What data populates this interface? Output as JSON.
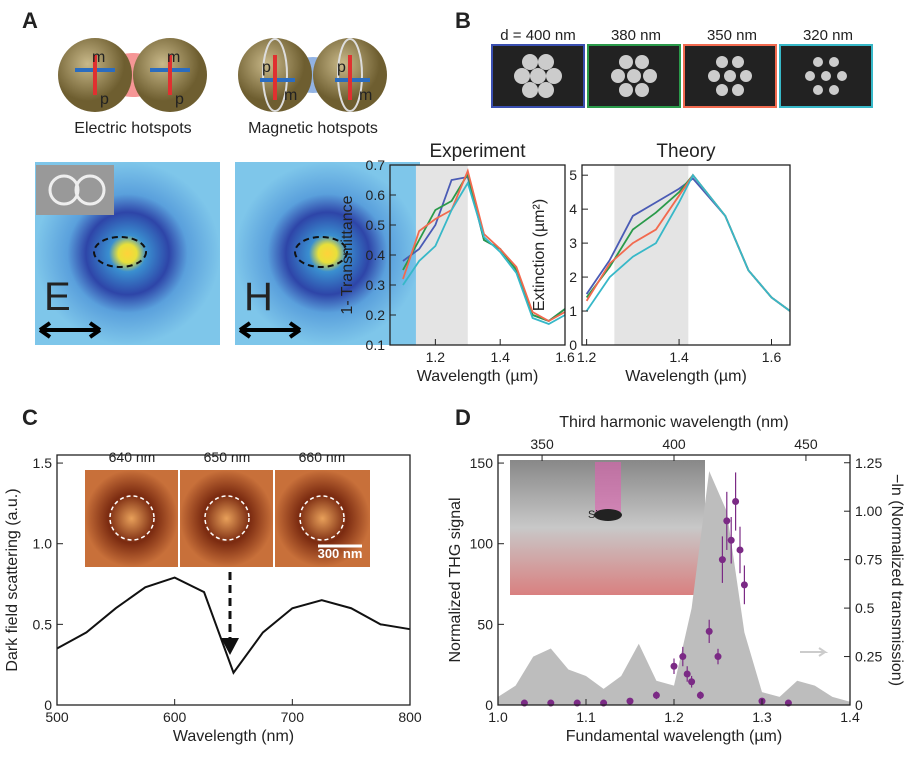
{
  "panels": {
    "labels": [
      "A",
      "B",
      "C",
      "D"
    ],
    "a": {
      "captions": [
        "Electric hotspots",
        "Magnetic hotspots"
      ],
      "fields": [
        "E",
        "H"
      ],
      "letters": [
        "m",
        "p"
      ]
    },
    "b": {
      "sizes": [
        "d = 400 nm",
        "380 nm",
        "350 nm",
        "320 nm"
      ]
    },
    "c": {
      "inset": [
        "640 nm",
        "650 nm",
        "660 nm"
      ],
      "scale": "300 nm"
    },
    "d": {
      "inset": "Si"
    }
  },
  "chart_data": [
    {
      "type": "line",
      "title": "Experiment",
      "xlabel": "Wavelength (µm)",
      "ylabel": "1- Transmittance",
      "x": [
        1.1,
        1.15,
        1.2,
        1.25,
        1.3,
        1.35,
        1.4,
        1.45,
        1.5,
        1.55,
        1.6
      ],
      "series": [
        {
          "color": "#4a5bb5",
          "values": [
            0.38,
            0.42,
            0.5,
            0.65,
            0.66,
            0.45,
            0.42,
            0.35,
            0.2,
            0.18,
            0.22
          ]
        },
        {
          "color": "#2a9a4a",
          "values": [
            0.35,
            0.45,
            0.55,
            0.58,
            0.67,
            0.45,
            0.42,
            0.35,
            0.2,
            0.18,
            0.22
          ]
        },
        {
          "color": "#f26a4f",
          "values": [
            0.32,
            0.48,
            0.52,
            0.55,
            0.68,
            0.47,
            0.42,
            0.36,
            0.21,
            0.18,
            0.21
          ]
        },
        {
          "color": "#37b8c8",
          "values": [
            0.3,
            0.38,
            0.43,
            0.55,
            0.64,
            0.46,
            0.41,
            0.34,
            0.19,
            0.17,
            0.2
          ]
        }
      ],
      "shade": [
        1.14,
        1.3
      ],
      "xlim": [
        1.06,
        1.6
      ],
      "xticks": [
        1.2,
        1.4,
        1.6
      ],
      "ylim": [
        0.1,
        0.7
      ],
      "yticks": [
        0.1,
        0.2,
        0.3,
        0.4,
        0.5,
        0.6,
        0.7
      ]
    },
    {
      "type": "line",
      "title": "Theory",
      "xlabel": "Wavelength (µm)",
      "ylabel": "Extinction (µm²)",
      "x": [
        1.2,
        1.25,
        1.3,
        1.35,
        1.4,
        1.43,
        1.5,
        1.55,
        1.6,
        1.64
      ],
      "series": [
        {
          "color": "#4a5bb5",
          "values": [
            1.5,
            2.5,
            3.8,
            4.2,
            4.6,
            4.9,
            3.8,
            2.2,
            1.4,
            1.0
          ]
        },
        {
          "color": "#2a9a4a",
          "values": [
            1.4,
            2.3,
            3.4,
            3.9,
            4.5,
            5.0,
            3.8,
            2.2,
            1.4,
            1.0
          ]
        },
        {
          "color": "#f26a4f",
          "values": [
            1.3,
            2.4,
            3.0,
            3.4,
            4.4,
            5.0,
            3.8,
            2.2,
            1.4,
            1.0
          ]
        },
        {
          "color": "#37b8c8",
          "values": [
            1.0,
            2.0,
            2.6,
            3.0,
            4.2,
            5.0,
            3.8,
            2.2,
            1.4,
            1.0
          ]
        }
      ],
      "shade": [
        1.26,
        1.42
      ],
      "xlim": [
        1.19,
        1.64
      ],
      "xticks": [
        1.2,
        1.4,
        1.6
      ],
      "ylim": [
        0,
        5.3
      ],
      "yticks": [
        0,
        1,
        2,
        3,
        4,
        5
      ]
    },
    {
      "type": "line",
      "xlabel": "Wavelength (nm)",
      "ylabel": "Dark field scattering (a.u.)",
      "x": [
        500,
        525,
        550,
        575,
        600,
        625,
        650,
        675,
        700,
        725,
        750,
        775,
        800
      ],
      "series": [
        {
          "color": "#111111",
          "values": [
            0.35,
            0.45,
            0.6,
            0.73,
            0.79,
            0.7,
            0.2,
            0.45,
            0.6,
            0.65,
            0.6,
            0.5,
            0.47
          ]
        }
      ],
      "xlim": [
        500,
        800
      ],
      "xticks": [
        500,
        600,
        700,
        800
      ],
      "ylim": [
        0,
        1.55
      ],
      "yticks": [
        0,
        0.5,
        {
          "value": 1,
          "label": "1.0"
        },
        1.5
      ]
    },
    {
      "type": "combo",
      "xlabel": "Fundamental wavelength (µm)",
      "ylabel": "Normalized  THG  signal",
      "y2label": "−ln (Normalized  transmission)",
      "x2label": "Third harmonic wavelength (nm)",
      "series": [
        {
          "type": "area",
          "color": "#bdbdbd",
          "x": [
            1.0,
            1.02,
            1.04,
            1.06,
            1.08,
            1.1,
            1.12,
            1.14,
            1.16,
            1.18,
            1.2,
            1.22,
            1.24,
            1.26,
            1.28,
            1.3,
            1.32,
            1.34,
            1.36,
            1.38,
            1.4
          ],
          "values": [
            5,
            12,
            30,
            35,
            22,
            18,
            10,
            18,
            38,
            15,
            12,
            60,
            145,
            120,
            45,
            8,
            5,
            15,
            12,
            5,
            2
          ]
        },
        {
          "type": "scatter",
          "axis": "y2",
          "color": "#7b2a85",
          "x": [
            1.03,
            1.06,
            1.09,
            1.12,
            1.15,
            1.18,
            1.2,
            1.21,
            1.215,
            1.22,
            1.23,
            1.24,
            1.25,
            1.255,
            1.26,
            1.265,
            1.27,
            1.275,
            1.28,
            1.3,
            1.33
          ],
          "values": [
            0.01,
            0.01,
            0.01,
            0.01,
            0.02,
            0.05,
            0.2,
            0.25,
            0.16,
            0.12,
            0.05,
            0.38,
            0.25,
            0.75,
            0.95,
            0.85,
            1.05,
            0.8,
            0.62,
            0.02,
            0.01
          ],
          "errors": [
            0.01,
            0.01,
            0.01,
            0.01,
            0.01,
            0.02,
            0.04,
            0.05,
            0.04,
            0.03,
            0.02,
            0.06,
            0.04,
            0.12,
            0.15,
            0.12,
            0.15,
            0.12,
            0.1,
            0.01,
            0.01
          ]
        }
      ],
      "xlim": [
        1.0,
        1.4
      ],
      "xticks": [
        {
          "value": 1,
          "label": "1.0"
        },
        1.1,
        1.2,
        1.3,
        1.4
      ],
      "ylim": [
        0,
        155
      ],
      "yticks": [
        0,
        50,
        100,
        150
      ],
      "y2lim": [
        0,
        1.29
      ],
      "y2ticks": [
        0,
        0.25,
        0.5,
        0.75,
        {
          "value": 1,
          "label": "1.00"
        },
        1.25
      ],
      "x2lim": [
        333.3,
        466.7
      ],
      "x2ticks": [
        350,
        400,
        450
      ]
    }
  ]
}
